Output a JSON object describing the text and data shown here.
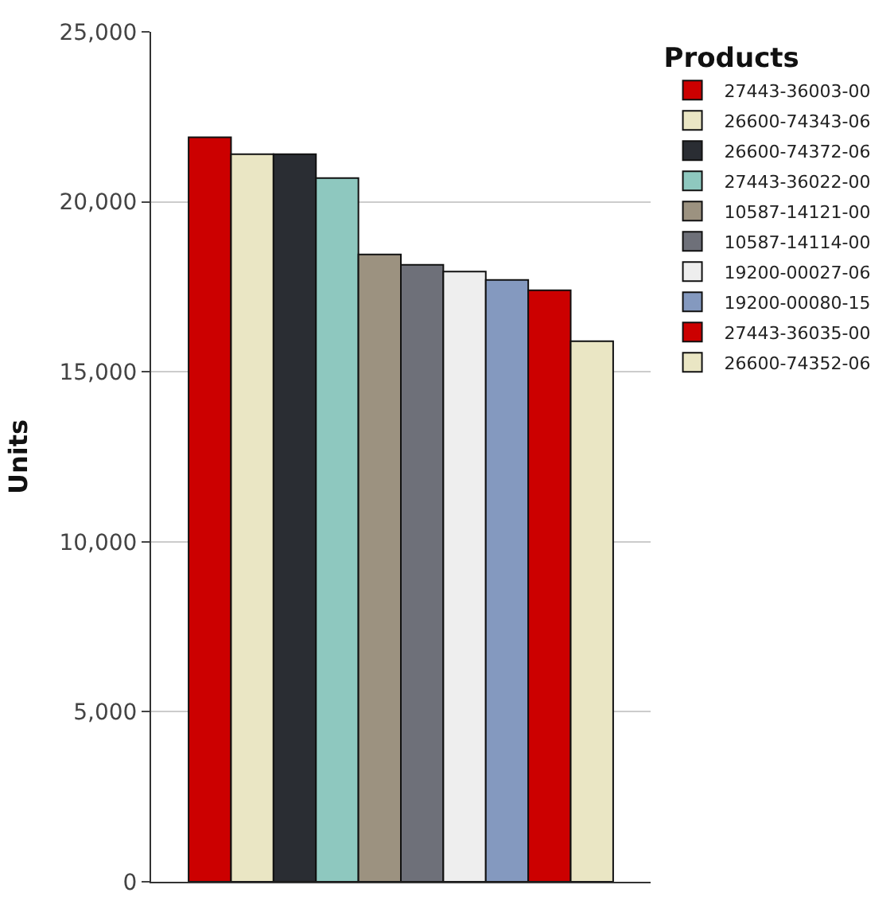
{
  "chart_data": {
    "type": "bar",
    "ylabel": "Units",
    "legend_title": "Products",
    "categories": [
      null
    ],
    "series": [
      {
        "name": "27443-36003-00",
        "color": "#cc0000",
        "values": [
          21900
        ]
      },
      {
        "name": "26600-74343-06",
        "color": "#eae6c4",
        "values": [
          21400
        ]
      },
      {
        "name": "26600-74372-06",
        "color": "#2a2d33",
        "values": [
          21400
        ]
      },
      {
        "name": "27443-36022-00",
        "color": "#8ec8bf",
        "values": [
          20700
        ]
      },
      {
        "name": "10587-14121-00",
        "color": "#9c9280",
        "values": [
          18450
        ]
      },
      {
        "name": "10587-14114-00",
        "color": "#6e7079",
        "values": [
          18150
        ]
      },
      {
        "name": "19200-00027-06",
        "color": "#eeeeee",
        "values": [
          17950
        ]
      },
      {
        "name": "19200-00080-15",
        "color": "#8499bf",
        "values": [
          17700
        ]
      },
      {
        "name": "27443-36035-00",
        "color": "#cc0000",
        "values": [
          17400
        ]
      },
      {
        "name": "26600-74352-06",
        "color": "#eae6c4",
        "values": [
          15900
        ]
      }
    ],
    "ylim": [
      0,
      25000
    ],
    "yticks": [
      {
        "value": 0,
        "label": "0"
      },
      {
        "value": 5000,
        "label": "5,000"
      },
      {
        "value": 10000,
        "label": "10,000"
      },
      {
        "value": 15000,
        "label": "15,000"
      },
      {
        "value": 20000,
        "label": "20,000"
      },
      {
        "value": 25000,
        "label": "25,000"
      }
    ],
    "grid": "y",
    "legend": "right",
    "tick_labels": "y"
  }
}
